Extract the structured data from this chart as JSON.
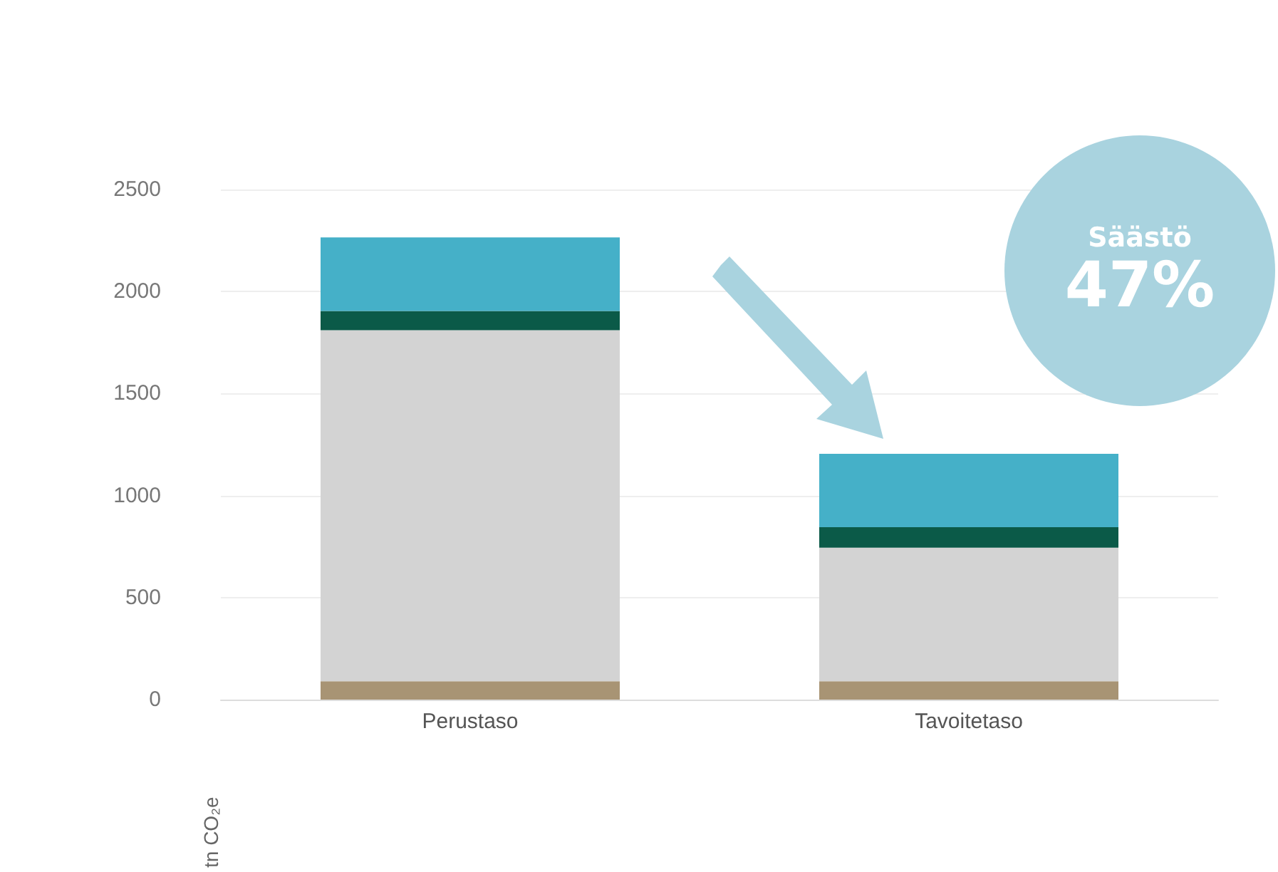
{
  "chart_data": {
    "type": "bar",
    "stacked": true,
    "ylabel": "tn CO₂e",
    "categories": [
      "Perustaso",
      "Tavoitetaso"
    ],
    "series": [
      {
        "color": "#a89474",
        "values": [
          90,
          90
        ]
      },
      {
        "color": "#d3d3d3",
        "values": [
          1720,
          655
        ]
      },
      {
        "color": "#0b5a48",
        "values": [
          95,
          100
        ]
      },
      {
        "color": "#45b0c8",
        "values": [
          360,
          360
        ]
      }
    ],
    "ylim": [
      0,
      2500
    ],
    "yticks": [
      0,
      500,
      1000,
      1500,
      2000,
      2500
    ],
    "grid": "y",
    "annotations": [
      "Säästö",
      "47%"
    ]
  }
}
